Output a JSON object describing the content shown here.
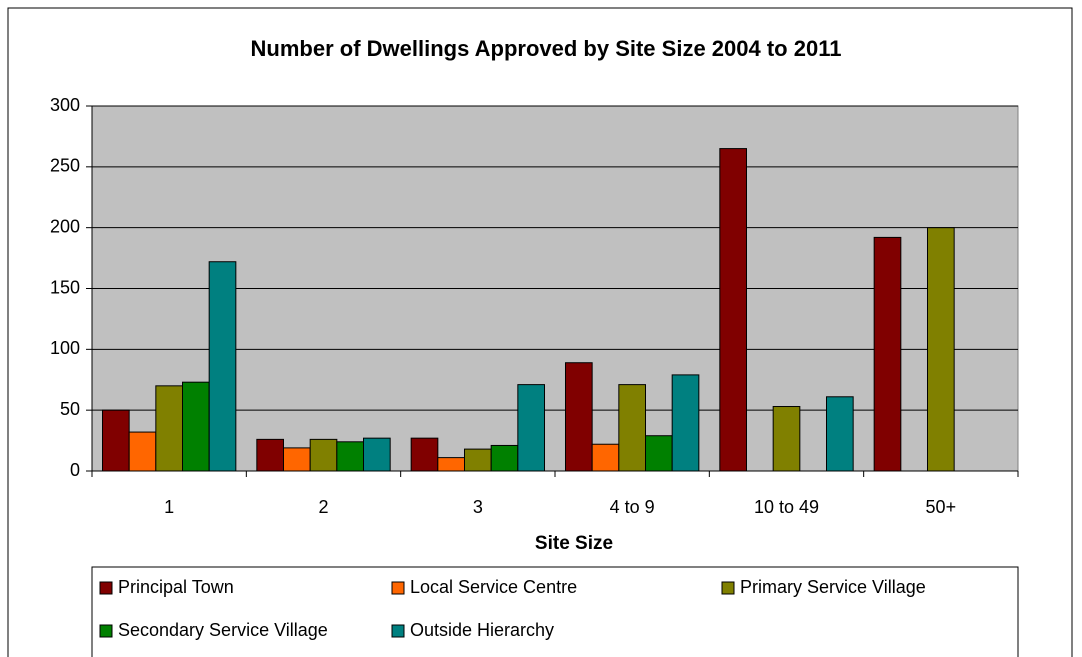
{
  "chart_data": {
    "type": "bar",
    "title": "Number of Dwellings Approved by Site Size 2004 to 2011",
    "x_label": "Site Size",
    "categories": [
      "1",
      "2",
      "3",
      "4 to 9",
      "10 to 49",
      "50+"
    ],
    "series": [
      {
        "name": "Principal Town",
        "color": "#800000",
        "values": [
          50,
          26,
          27,
          89,
          265,
          192
        ]
      },
      {
        "name": "Local Service Centre",
        "color": "#ff6600",
        "values": [
          32,
          19,
          11,
          22,
          null,
          null
        ]
      },
      {
        "name": "Primary Service Village",
        "color": "#808000",
        "values": [
          70,
          26,
          18,
          71,
          53,
          200
        ]
      },
      {
        "name": "Secondary Service Village",
        "color": "#008000",
        "values": [
          73,
          24,
          21,
          29,
          null,
          null
        ]
      },
      {
        "name": "Outside Hierarchy",
        "color": "#008080",
        "values": [
          172,
          27,
          71,
          79,
          61,
          null
        ]
      }
    ],
    "ylim": [
      0,
      300
    ],
    "yticks": [
      0,
      50,
      100,
      150,
      200,
      250,
      300
    ],
    "grid": true,
    "legend": "bottom"
  }
}
